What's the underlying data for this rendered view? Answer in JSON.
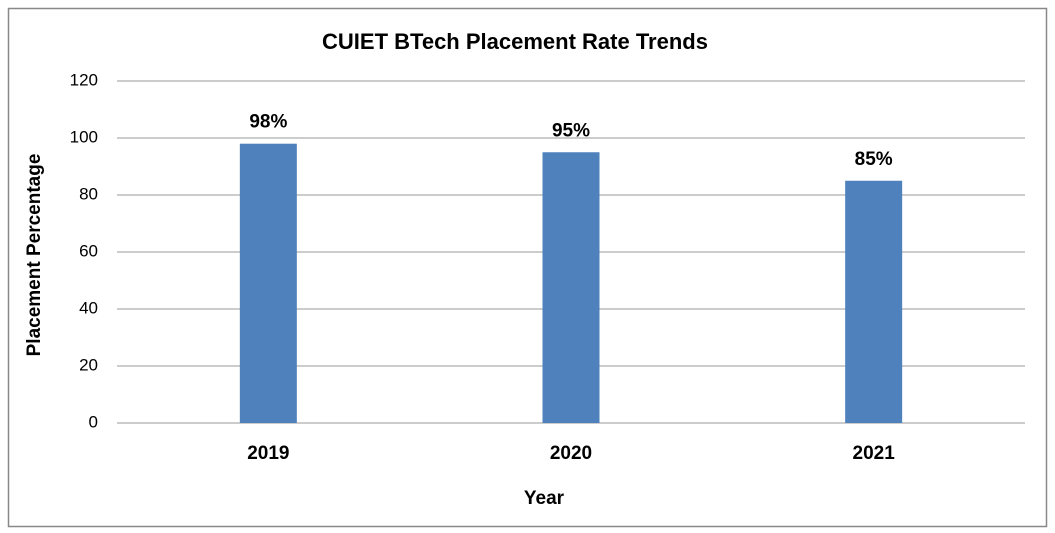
{
  "chart_data": {
    "type": "bar",
    "title": "CUIET BTech Placement Rate Trends",
    "x_label": "Year",
    "y_label": "Placement Percentage",
    "categories": [
      "2019",
      "2020",
      "2021"
    ],
    "values": [
      98,
      95,
      85
    ],
    "value_labels": [
      "98%",
      "95%",
      "85%"
    ],
    "color": "#4f81bd",
    "ylim": [
      0,
      120
    ],
    "yticks": [
      0,
      20,
      40,
      60,
      80,
      100,
      120
    ],
    "grid": true
  }
}
